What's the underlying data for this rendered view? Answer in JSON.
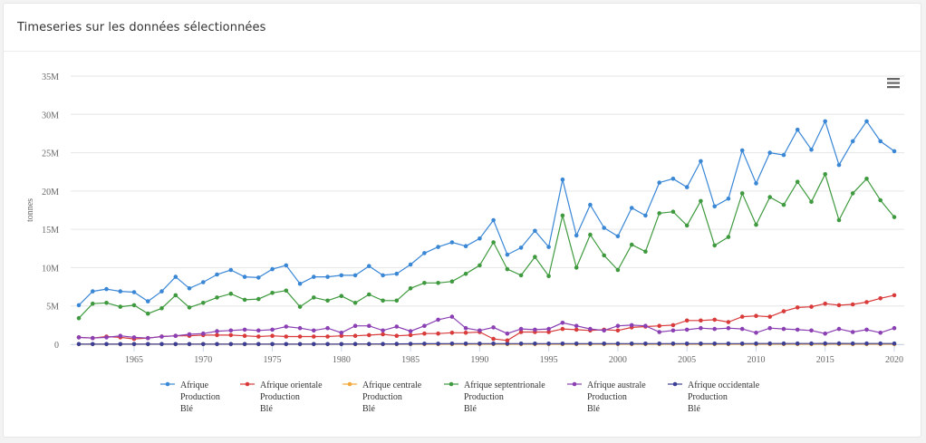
{
  "card": {
    "title": "Timeseries sur les données sélectionnées"
  },
  "toolbar": {
    "menu_icon": "hamburger-menu-icon"
  },
  "chart_data": {
    "type": "line",
    "title": "",
    "ylabel": "tonnes",
    "xlabel": "",
    "xlim": [
      1961,
      2020
    ],
    "ylim": [
      0,
      35000000
    ],
    "grid": true,
    "legend_position": "bottom",
    "x_ticks": [
      1965,
      1970,
      1975,
      1980,
      1985,
      1990,
      1995,
      2000,
      2005,
      2010,
      2015,
      2020
    ],
    "y_ticks": [
      0,
      5000000,
      10000000,
      15000000,
      20000000,
      25000000,
      30000000,
      35000000
    ],
    "y_tick_labels": [
      "0",
      "5M",
      "10M",
      "15M",
      "20M",
      "25M",
      "30M",
      "35M"
    ],
    "x": [
      1961,
      1962,
      1963,
      1964,
      1965,
      1966,
      1967,
      1968,
      1969,
      1970,
      1971,
      1972,
      1973,
      1974,
      1975,
      1976,
      1977,
      1978,
      1979,
      1980,
      1981,
      1982,
      1983,
      1984,
      1985,
      1986,
      1987,
      1988,
      1989,
      1990,
      1991,
      1992,
      1993,
      1994,
      1995,
      1996,
      1997,
      1998,
      1999,
      2000,
      2001,
      2002,
      2003,
      2004,
      2005,
      2006,
      2007,
      2008,
      2009,
      2010,
      2011,
      2012,
      2013,
      2014,
      2015,
      2016,
      2017,
      2018,
      2019,
      2020
    ],
    "series": [
      {
        "name": "Afrique",
        "legend_lines": [
          "Afrique",
          "Production",
          "Blé"
        ],
        "color": "#3a87d6",
        "values": [
          5.1,
          6.9,
          7.2,
          6.9,
          6.8,
          5.6,
          6.9,
          8.8,
          7.3,
          8.1,
          9.1,
          9.7,
          8.8,
          8.7,
          9.8,
          10.3,
          7.9,
          8.8,
          8.8,
          9.0,
          9.0,
          10.2,
          9.0,
          9.2,
          10.4,
          11.9,
          12.7,
          13.3,
          12.8,
          13.8,
          16.2,
          11.7,
          12.6,
          14.8,
          12.7,
          21.5,
          14.2,
          18.2,
          15.2,
          14.1,
          17.8,
          16.8,
          21.1,
          21.6,
          20.5,
          23.9,
          18.0,
          19.0,
          25.3,
          21.0,
          25.0,
          24.7,
          28.0,
          25.4,
          29.1,
          23.4,
          26.5,
          29.1,
          26.5,
          25.2
        ]
      },
      {
        "name": "Afrique orientale",
        "legend_lines": [
          "Afrique orientale",
          "Production",
          "Blé"
        ],
        "color": "#d93a3a",
        "values": [
          0.9,
          0.8,
          1.0,
          0.9,
          0.7,
          0.8,
          1.0,
          1.1,
          1.1,
          1.2,
          1.2,
          1.2,
          1.1,
          1.0,
          1.1,
          1.0,
          1.0,
          1.0,
          1.0,
          1.1,
          1.1,
          1.2,
          1.3,
          1.1,
          1.2,
          1.4,
          1.4,
          1.5,
          1.5,
          1.6,
          0.7,
          0.5,
          1.6,
          1.6,
          1.6,
          2.0,
          1.9,
          1.8,
          1.9,
          1.8,
          2.2,
          2.3,
          2.4,
          2.5,
          3.1,
          3.1,
          3.2,
          2.9,
          3.6,
          3.7,
          3.6,
          4.3,
          4.8,
          4.9,
          5.3,
          5.1,
          5.2,
          5.5,
          6.0,
          6.4
        ]
      },
      {
        "name": "Afrique centrale",
        "legend_lines": [
          "Afrique centrale",
          "Production",
          "Blé"
        ],
        "color": "#f3a83a",
        "values": [
          0.01,
          0.01,
          0.01,
          0.01,
          0.01,
          0.01,
          0.01,
          0.01,
          0.01,
          0.01,
          0.01,
          0.01,
          0.01,
          0.01,
          0.01,
          0.01,
          0.01,
          0.01,
          0.01,
          0.01,
          0.01,
          0.01,
          0.01,
          0.01,
          0.01,
          0.01,
          0.01,
          0.01,
          0.01,
          0.01,
          0.01,
          0.01,
          0.01,
          0.01,
          0.01,
          0.01,
          0.01,
          0.01,
          0.01,
          0.01,
          0.01,
          0.01,
          0.01,
          0.01,
          0.01,
          0.01,
          0.01,
          0.01,
          0.01,
          0.01,
          0.01,
          0.01,
          0.01,
          0.01,
          0.01,
          0.01,
          0.01,
          0.01,
          0.01,
          0.01
        ]
      },
      {
        "name": "Afrique septentrionale",
        "legend_lines": [
          "Afrique septentrionale",
          "Production",
          "Blé"
        ],
        "color": "#3f9a3f",
        "values": [
          3.4,
          5.3,
          5.4,
          4.9,
          5.1,
          4.0,
          4.7,
          6.4,
          4.8,
          5.4,
          6.1,
          6.6,
          5.8,
          5.9,
          6.7,
          7.0,
          4.9,
          6.1,
          5.7,
          6.3,
          5.4,
          6.5,
          5.7,
          5.7,
          7.3,
          8.0,
          8.0,
          8.2,
          9.2,
          10.3,
          13.3,
          9.8,
          9.0,
          11.4,
          8.9,
          16.8,
          10.0,
          14.3,
          11.6,
          9.7,
          13.0,
          12.1,
          17.1,
          17.3,
          15.5,
          18.7,
          12.9,
          14.0,
          19.7,
          15.6,
          19.2,
          18.2,
          21.2,
          18.6,
          22.2,
          16.2,
          19.7,
          21.6,
          18.8,
          16.6
        ]
      },
      {
        "name": "Afrique australe",
        "legend_lines": [
          "Afrique australe",
          "Production",
          "Blé"
        ],
        "color": "#8a3fb3",
        "values": [
          0.9,
          0.8,
          0.9,
          1.1,
          0.9,
          0.8,
          1.0,
          1.1,
          1.3,
          1.4,
          1.7,
          1.8,
          1.9,
          1.8,
          1.9,
          2.3,
          2.1,
          1.8,
          2.1,
          1.5,
          2.4,
          2.4,
          1.8,
          2.3,
          1.7,
          2.4,
          3.2,
          3.6,
          2.1,
          1.8,
          2.2,
          1.4,
          2.0,
          1.9,
          2.0,
          2.8,
          2.4,
          2.0,
          1.8,
          2.4,
          2.5,
          2.4,
          1.6,
          1.8,
          1.9,
          2.1,
          2.0,
          2.1,
          2.0,
          1.5,
          2.1,
          2.0,
          1.9,
          1.8,
          1.4,
          2.0,
          1.6,
          1.9,
          1.5,
          2.1
        ]
      },
      {
        "name": "Afrique occidentale",
        "legend_lines": [
          "Afrique occidentale",
          "Production",
          "Blé"
        ],
        "color": "#3b3f96",
        "values": [
          0.02,
          0.02,
          0.02,
          0.02,
          0.02,
          0.02,
          0.02,
          0.02,
          0.02,
          0.02,
          0.02,
          0.02,
          0.02,
          0.02,
          0.02,
          0.02,
          0.02,
          0.02,
          0.02,
          0.02,
          0.03,
          0.03,
          0.04,
          0.05,
          0.06,
          0.07,
          0.07,
          0.08,
          0.08,
          0.08,
          0.08,
          0.08,
          0.08,
          0.08,
          0.08,
          0.08,
          0.08,
          0.08,
          0.08,
          0.08,
          0.08,
          0.08,
          0.08,
          0.08,
          0.08,
          0.08,
          0.08,
          0.08,
          0.08,
          0.09,
          0.09,
          0.1,
          0.1,
          0.1,
          0.11,
          0.11,
          0.1,
          0.1,
          0.1,
          0.1
        ]
      }
    ]
  }
}
